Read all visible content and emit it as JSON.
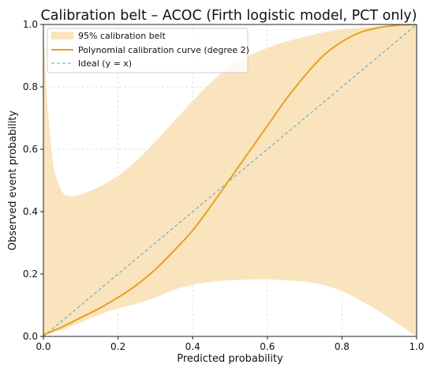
{
  "chart_data": {
    "type": "line",
    "title": "Calibration belt – ACOC (Firth logistic model, PCT only)",
    "xlabel": "Predicted probability",
    "ylabel": "Observed event probability",
    "xlim": [
      0,
      1
    ],
    "ylim": [
      0,
      1
    ],
    "xticks": [
      "0.0",
      "0.2",
      "0.4",
      "0.6",
      "0.8",
      "1.0"
    ],
    "yticks": [
      "0.0",
      "0.2",
      "0.4",
      "0.6",
      "0.8",
      "1.0"
    ],
    "grid": true,
    "legend_position": "top-left",
    "legend": [
      {
        "label": "95% calibration belt",
        "kind": "band",
        "color": "#fae4bd"
      },
      {
        "label": "Polynomial calibration curve (degree 2)",
        "kind": "line",
        "color": "#e8a020"
      },
      {
        "label": "Ideal (y = x)",
        "kind": "dashed-line",
        "color": "#4aa8c8"
      }
    ],
    "series": [
      {
        "name": "Polynomial calibration curve (degree 2)",
        "color": "#e8a020",
        "x": [
          0.0,
          0.05,
          0.1,
          0.15,
          0.2,
          0.25,
          0.3,
          0.35,
          0.4,
          0.45,
          0.5,
          0.55,
          0.6,
          0.65,
          0.7,
          0.75,
          0.8,
          0.85,
          0.9,
          0.95,
          1.0
        ],
        "y": [
          0.005,
          0.03,
          0.06,
          0.09,
          0.125,
          0.165,
          0.215,
          0.275,
          0.34,
          0.42,
          0.505,
          0.59,
          0.675,
          0.76,
          0.835,
          0.9,
          0.945,
          0.975,
          0.99,
          0.998,
          1.0
        ]
      },
      {
        "name": "Ideal (y = x)",
        "color": "#4aa8c8",
        "x": [
          0.0,
          1.0
        ],
        "y": [
          0.0,
          1.0
        ]
      }
    ],
    "band": {
      "name": "95% calibration belt",
      "color": "#fae4bd",
      "x": [
        0.0,
        0.01,
        0.02,
        0.03,
        0.05,
        0.07,
        0.1,
        0.15,
        0.2,
        0.25,
        0.3,
        0.35,
        0.4,
        0.45,
        0.5,
        0.55,
        0.6,
        0.65,
        0.7,
        0.75,
        0.8,
        0.85,
        0.9,
        0.95,
        1.0
      ],
      "upper": [
        0.98,
        0.76,
        0.62,
        0.53,
        0.465,
        0.45,
        0.455,
        0.48,
        0.515,
        0.565,
        0.625,
        0.69,
        0.755,
        0.815,
        0.865,
        0.9,
        0.925,
        0.945,
        0.96,
        0.975,
        0.985,
        0.99,
        0.995,
        0.998,
        1.0
      ],
      "lower": [
        0.0,
        0.005,
        0.01,
        0.015,
        0.02,
        0.03,
        0.045,
        0.07,
        0.09,
        0.105,
        0.125,
        0.15,
        0.165,
        0.175,
        0.18,
        0.182,
        0.183,
        0.18,
        0.175,
        0.165,
        0.145,
        0.115,
        0.08,
        0.04,
        0.0
      ]
    }
  }
}
